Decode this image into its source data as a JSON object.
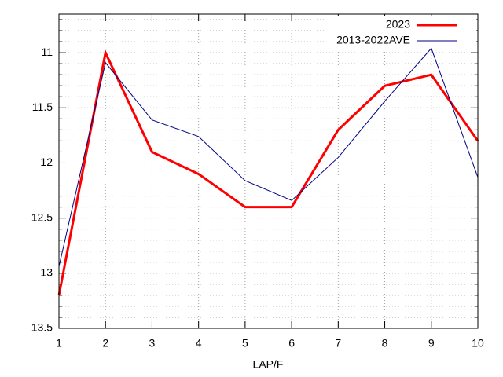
{
  "chart_data": {
    "type": "line",
    "x_label": "LAP/F",
    "x": [
      1,
      2,
      3,
      4,
      5,
      6,
      7,
      8,
      9,
      10
    ],
    "series": [
      {
        "name": "2023",
        "color": "#ff0000",
        "width": 3,
        "values": [
          13.2,
          11.0,
          11.9,
          12.1,
          12.4,
          12.4,
          11.7,
          11.3,
          11.2,
          11.8
        ]
      },
      {
        "name": "2013-2022AVE",
        "color": "#000080",
        "width": 1,
        "values": [
          12.94,
          11.09,
          11.61,
          11.76,
          12.16,
          12.34,
          11.95,
          11.44,
          10.96,
          12.13
        ]
      }
    ],
    "xlim": [
      1,
      10
    ],
    "xticks": [
      1,
      2,
      3,
      4,
      5,
      6,
      7,
      8,
      9,
      10
    ],
    "ylim": [
      13.5,
      10.65
    ],
    "yticks": [
      11,
      11.5,
      12,
      12.5,
      13,
      13.5
    ],
    "y_minor_ticks": [
      10.7,
      10.8,
      10.9,
      11.1,
      11.2,
      11.3,
      11.4,
      11.6,
      11.7,
      11.8,
      11.9,
      12.1,
      12.2,
      12.3,
      12.4,
      12.6,
      12.7,
      12.8,
      12.9,
      13.1,
      13.2,
      13.3,
      13.4
    ],
    "grid": true,
    "legend": "top-right"
  }
}
